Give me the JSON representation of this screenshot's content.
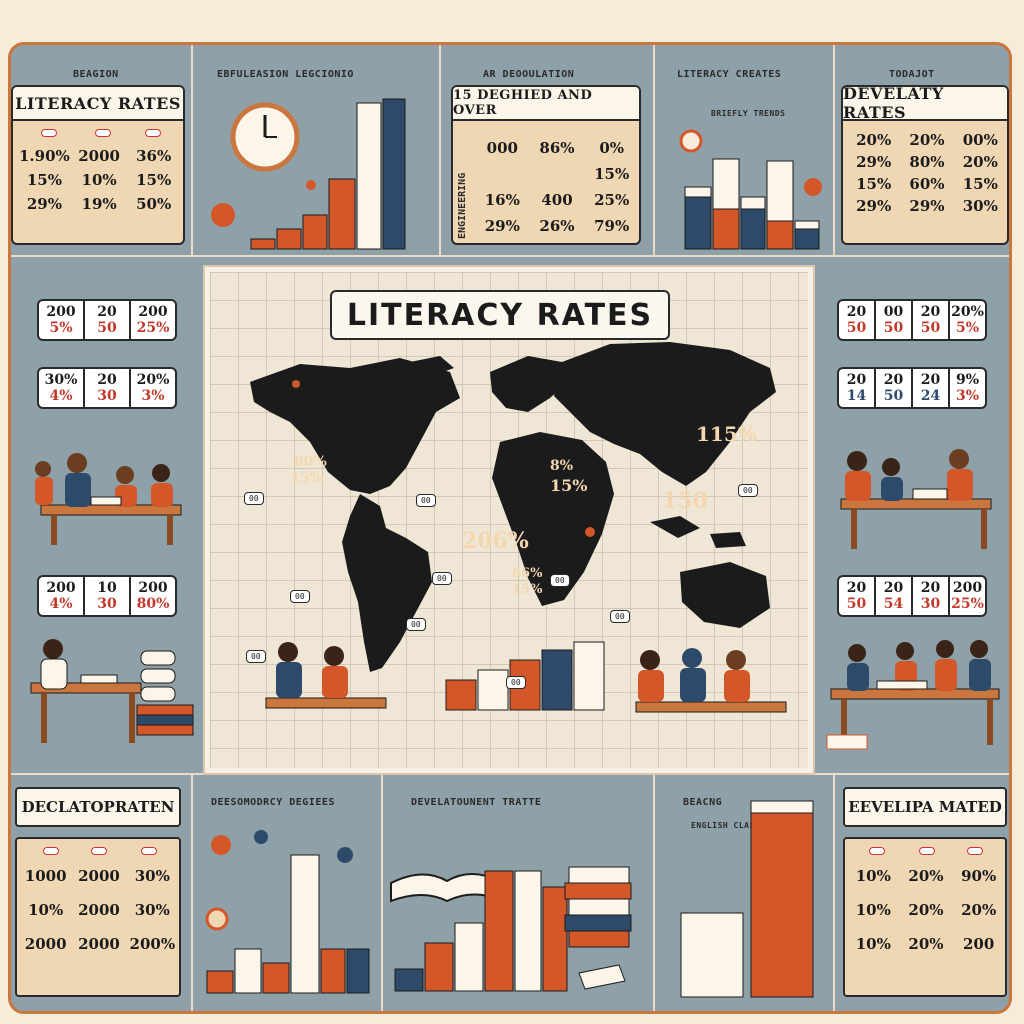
{
  "poster": {
    "colors": {
      "background": "#8ea1a8",
      "accent": "#d4572a",
      "cream": "#f0d7b4",
      "navy": "#2e4a6b",
      "ink": "#1b1b1b"
    }
  },
  "map": {
    "title": "LITERACY RATES",
    "labels": [
      {
        "text": "80%",
        "region": "north-america"
      },
      {
        "text": "15%",
        "region": "north-america"
      },
      {
        "text": "115%",
        "region": "asia"
      },
      {
        "text": "8%",
        "region": "europe"
      },
      {
        "text": "15%",
        "region": "middle-east"
      },
      {
        "text": "150",
        "region": "east-asia"
      },
      {
        "text": "206%",
        "region": "africa"
      },
      {
        "text": "86%",
        "region": "africa"
      },
      {
        "text": "15%",
        "region": "africa"
      },
      {
        "text": "15%",
        "region": "south-america"
      }
    ],
    "bubbles": [
      "00",
      "00",
      "00",
      "00",
      "00",
      "00",
      "00",
      "00",
      "00",
      "00"
    ]
  },
  "top_left": {
    "heading": "BEAGION",
    "title": "LITERACY RATES",
    "rows": [
      [
        "1.90%",
        "2000",
        "36%"
      ],
      [
        "15%",
        "10%",
        "15%"
      ],
      [
        "29%",
        "19%",
        "50%"
      ]
    ]
  },
  "top_col2": {
    "heading": "EBFULEASION LEGCIONIO"
  },
  "top_center": {
    "heading": "AR DEOOULATION",
    "title": "15  DEGHIED AND OVER",
    "side": "ENGINEERING",
    "rows": [
      [
        "000",
        "86%",
        "0%"
      ],
      [
        "",
        "",
        "15%"
      ],
      [
        "16%",
        "400",
        "25%"
      ],
      [
        "29%",
        "26%",
        "79%"
      ]
    ]
  },
  "top_col4": {
    "heading": "LITERACY CREATES",
    "sub": "BRIEFLY TRENDS"
  },
  "top_right": {
    "heading": "TODAJOT",
    "title": "DEVELATY RATES",
    "rows": [
      [
        "20%",
        "20%",
        "00%"
      ],
      [
        "29%",
        "80%",
        "20%"
      ],
      [
        "15%",
        "60%",
        "15%"
      ],
      [
        "29%",
        "29%",
        "30%"
      ]
    ]
  },
  "left_cards": [
    {
      "top": [
        "200",
        "20",
        "200"
      ],
      "bottom": [
        "5%",
        "50",
        "25%"
      ]
    },
    {
      "top": [
        "30%",
        "20",
        "20%"
      ],
      "bottom": [
        "4%",
        "30",
        "3%"
      ]
    },
    {
      "top": [
        "200",
        "10",
        "200"
      ],
      "bottom": [
        "4%",
        "30",
        "80%"
      ]
    }
  ],
  "right_cards": [
    {
      "top": [
        "20",
        "00",
        "20",
        "20%"
      ],
      "bottom": [
        "50",
        "50",
        "50",
        "5%"
      ]
    },
    {
      "top": [
        "20",
        "20",
        "20",
        "9%"
      ],
      "bottom": [
        "14",
        "50",
        "24",
        "3%"
      ]
    },
    {
      "top": [
        "20",
        "20",
        "20",
        "200"
      ],
      "bottom": [
        "50",
        "54",
        "30",
        "25%"
      ]
    }
  ],
  "bottom_left": {
    "title": "DECLATOPRATEN",
    "rows": [
      [
        "1000",
        "2000",
        "30%"
      ],
      [
        "10%",
        "2000",
        "30%"
      ],
      [
        "2000",
        "2000",
        "200%"
      ]
    ]
  },
  "bottom_col2": {
    "heading": "DEESOMODRCY DEGIEES"
  },
  "bottom_col3": {
    "heading": "DEVELATOUNENT TRATTE"
  },
  "bottom_col4": {
    "heading": "BEACNG",
    "sub": "ENGLISH CLASSES"
  },
  "bottom_right": {
    "title": "EEVELIPA MATED",
    "rows": [
      [
        "10%",
        "20%",
        "90%"
      ],
      [
        "10%",
        "20%",
        "20%"
      ],
      [
        "10%",
        "20%",
        "200"
      ]
    ]
  }
}
